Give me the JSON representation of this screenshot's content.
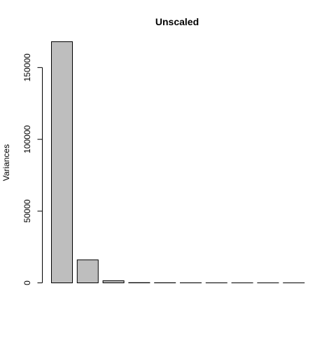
{
  "chart_data": {
    "type": "bar",
    "title": "Unscaled",
    "xlabel": "",
    "ylabel": "Variances",
    "ylim": [
      0,
      168000
    ],
    "yticks": [
      0,
      50000,
      100000,
      150000
    ],
    "ytick_labels": [
      "0",
      "50000",
      "100000",
      "150000"
    ],
    "categories": [
      "",
      "",
      "",
      "",
      "",
      "",
      "",
      "",
      "",
      ""
    ],
    "values": [
      168000,
      16000,
      1500,
      150,
      80,
      40,
      20,
      10,
      5,
      2
    ],
    "bar_fill": "#bebebe",
    "bar_stroke": "#000000",
    "grid": false,
    "legend": "none"
  }
}
